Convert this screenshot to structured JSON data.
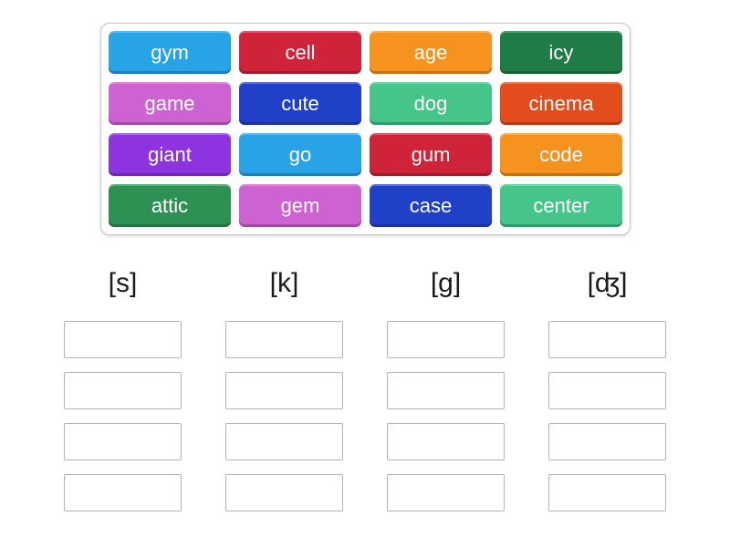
{
  "board": {
    "tiles": [
      {
        "label": "gym",
        "color": "#29a3e8"
      },
      {
        "label": "cell",
        "color": "#ce2339"
      },
      {
        "label": "age",
        "color": "#f6921e"
      },
      {
        "label": "icy",
        "color": "#1f7c46"
      },
      {
        "label": "game",
        "color": "#cd62d2"
      },
      {
        "label": "cute",
        "color": "#2040c8"
      },
      {
        "label": "dog",
        "color": "#45c589"
      },
      {
        "label": "cinema",
        "color": "#e34c1c"
      },
      {
        "label": "giant",
        "color": "#8e33e0"
      },
      {
        "label": "go",
        "color": "#29a3e8"
      },
      {
        "label": "gum",
        "color": "#ce2339"
      },
      {
        "label": "code",
        "color": "#f6921e"
      },
      {
        "label": "attic",
        "color": "#2f9053"
      },
      {
        "label": "gem",
        "color": "#cd62d2"
      },
      {
        "label": "case",
        "color": "#2040c8"
      },
      {
        "label": "center",
        "color": "#45c589"
      }
    ]
  },
  "groups": [
    {
      "label": "[s]"
    },
    {
      "label": "[k]"
    },
    {
      "label": "[g]"
    },
    {
      "label": "[ʤ]"
    }
  ],
  "ui_colors": {
    "tile_text": "#ffffff",
    "panel_border": "#c8c8c8",
    "slot_border": "#b3b3b3",
    "header_text": "#1a1a1a"
  }
}
